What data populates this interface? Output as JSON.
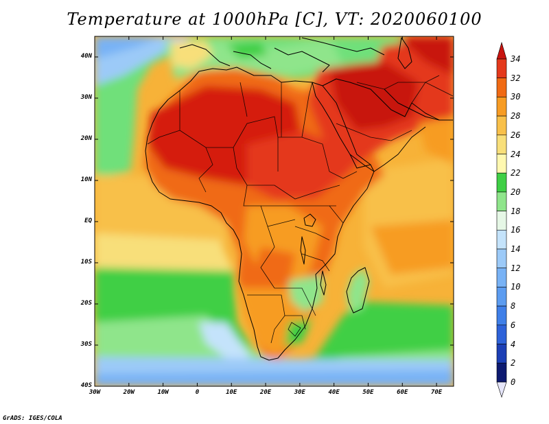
{
  "title": "Temperature at 1000hPa [C], VT: 2020060100",
  "footer": "GrADS: IGES/COLA",
  "map": {
    "lat_labels": [
      "40N",
      "30N",
      "20N",
      "10N",
      "EQ",
      "10S",
      "20S",
      "30S",
      "40S"
    ],
    "lon_labels": [
      "30W",
      "20W",
      "10W",
      "0",
      "10E",
      "20E",
      "30E",
      "40E",
      "50E",
      "60E",
      "70E"
    ],
    "lat_values": [
      40,
      30,
      20,
      10,
      0,
      -10,
      -20,
      -30,
      -40
    ],
    "lon_values": [
      -30,
      -20,
      -10,
      0,
      10,
      20,
      30,
      40,
      50,
      60,
      70
    ]
  },
  "colorbar": {
    "labels": [
      "34",
      "32",
      "30",
      "28",
      "26",
      "24",
      "22",
      "20",
      "18",
      "16",
      "14",
      "12",
      "10",
      "8",
      "6",
      "4",
      "2",
      "0"
    ],
    "colors": {
      "0-2": "#0d1a70",
      "2-4": "#1c3fb5",
      "4-6": "#2e62d9",
      "6-8": "#3f7fe8",
      "8-10": "#5c9cf0",
      "10-12": "#78b2f5",
      "12-14": "#9ccaf8",
      "14-16": "#c4e3fb",
      "16-18": "#e6f7e6",
      "18-20": "#8fe58b",
      "20-22": "#3fcf45",
      "22-24": "#fff8b0",
      "24-26": "#f8df7a",
      "26-28": "#f8c04a",
      "28-30": "#f79c24",
      "30-32": "#f06a14",
      "32-34": "#e4391c",
      "34+": "#c8140f"
    }
  },
  "colors": {
    "ocean_warm": "#f7b238",
    "land_hot": "#d51c0c",
    "land_cool": "#6fe07a",
    "ocean_cold": "#7fb8f2",
    "border": "#000000"
  }
}
